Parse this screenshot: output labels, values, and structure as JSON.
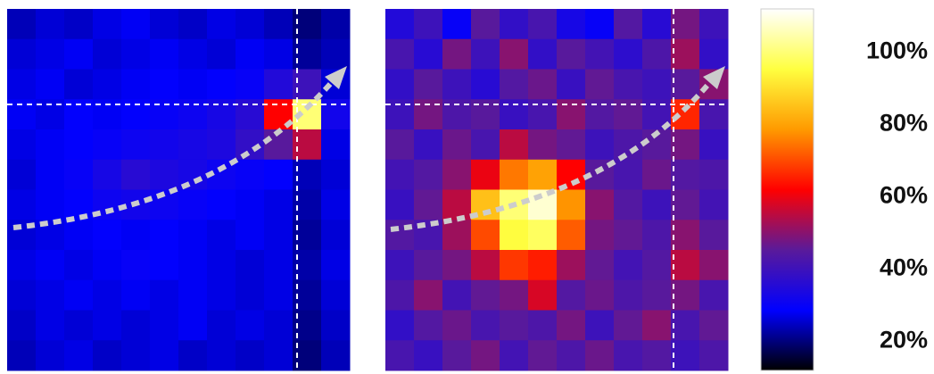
{
  "chart_data": {
    "type": "heatmap",
    "zlim": [
      12,
      112
    ],
    "zticks": [
      {
        "value": 20,
        "label": "20%"
      },
      {
        "value": 40,
        "label": "40%"
      },
      {
        "value": 60,
        "label": "60%"
      },
      {
        "value": 80,
        "label": "80%"
      },
      {
        "value": 100,
        "label": "100%"
      }
    ],
    "colormap": [
      "#000000",
      "#0000ff",
      "#5a1a9a",
      "#ff0000",
      "#ff9a00",
      "#ffff40",
      "#ffffff"
    ],
    "panels": [
      {
        "values": [
          [
            24,
            26,
            25,
            27,
            28,
            26,
            25,
            27,
            26,
            24,
            20,
            23
          ],
          [
            26,
            27,
            28,
            26,
            27,
            28,
            27,
            26,
            28,
            27,
            22,
            24
          ],
          [
            27,
            28,
            26,
            27,
            28,
            29,
            28,
            29,
            30,
            35,
            40,
            26
          ],
          [
            28,
            27,
            29,
            28,
            29,
            30,
            31,
            33,
            36,
            62,
            100,
            32
          ],
          [
            27,
            28,
            29,
            30,
            31,
            32,
            33,
            34,
            38,
            45,
            55,
            27
          ],
          [
            26,
            28,
            30,
            33,
            36,
            34,
            33,
            31,
            30,
            29,
            24,
            26
          ],
          [
            27,
            28,
            29,
            31,
            32,
            31,
            30,
            29,
            28,
            27,
            23,
            27
          ],
          [
            26,
            27,
            28,
            29,
            28,
            29,
            28,
            27,
            28,
            27,
            22,
            26
          ],
          [
            27,
            28,
            27,
            28,
            30,
            29,
            28,
            27,
            26,
            27,
            23,
            27
          ],
          [
            26,
            27,
            28,
            27,
            28,
            27,
            28,
            27,
            26,
            27,
            22,
            26
          ],
          [
            25,
            27,
            26,
            27,
            26,
            27,
            28,
            26,
            27,
            26,
            21,
            25
          ],
          [
            24,
            26,
            27,
            25,
            26,
            27,
            25,
            26,
            25,
            26,
            20,
            24
          ]
        ]
      },
      {
        "values": [
          [
            35,
            40,
            30,
            45,
            38,
            42,
            33,
            30,
            44,
            36,
            48,
            40
          ],
          [
            42,
            36,
            48,
            40,
            50,
            38,
            45,
            41,
            37,
            43,
            52,
            38
          ],
          [
            38,
            45,
            40,
            36,
            44,
            47,
            39,
            46,
            42,
            40,
            45,
            50
          ],
          [
            40,
            48,
            43,
            45,
            39,
            42,
            50,
            44,
            46,
            41,
            66,
            42
          ],
          [
            45,
            39,
            47,
            42,
            55,
            48,
            46,
            40,
            43,
            45,
            48,
            39
          ],
          [
            41,
            44,
            50,
            60,
            75,
            80,
            62,
            45,
            42,
            47,
            44,
            43
          ],
          [
            39,
            46,
            55,
            85,
            100,
            108,
            78,
            50,
            44,
            40,
            46,
            41
          ],
          [
            44,
            42,
            52,
            70,
            95,
            98,
            72,
            48,
            46,
            43,
            50,
            45
          ],
          [
            40,
            45,
            48,
            55,
            68,
            65,
            52,
            46,
            41,
            44,
            55,
            50
          ],
          [
            43,
            50,
            41,
            46,
            48,
            58,
            44,
            47,
            43,
            45,
            48,
            42
          ],
          [
            38,
            44,
            47,
            42,
            45,
            43,
            48,
            40,
            46,
            50,
            42,
            46
          ],
          [
            42,
            39,
            45,
            48,
            41,
            46,
            43,
            47,
            42,
            44,
            40,
            43
          ]
        ]
      }
    ]
  }
}
